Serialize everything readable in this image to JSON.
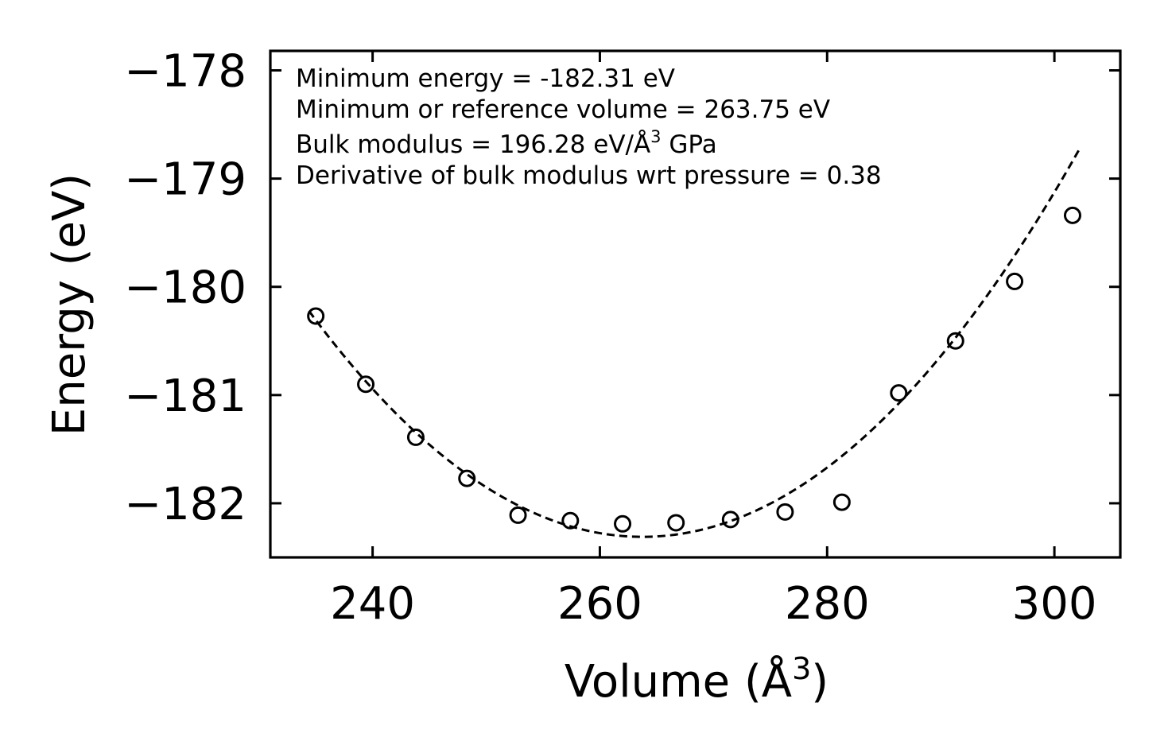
{
  "chart_data": {
    "type": "scatter",
    "title": "",
    "xlabel": "Volume (Å",
    "xlabel_sup": "3",
    "xlabel_end": ")",
    "ylabel": "Energy (eV)",
    "xlim": [
      231,
      305.8
    ],
    "ylim": [
      -182.5,
      -177.82
    ],
    "x_ticks": [
      240,
      260,
      280,
      300
    ],
    "x_tick_labels": [
      "240",
      "260",
      "280",
      "300"
    ],
    "y_ticks": [
      -182,
      -181,
      -180,
      -179,
      -178
    ],
    "y_tick_labels": [
      "−182",
      "−181",
      "−180",
      "−179",
      "−178"
    ],
    "series": [
      {
        "name": "data",
        "style": "open-circle",
        "x": [
          235.0,
          239.4,
          243.8,
          248.3,
          252.8,
          257.4,
          262.0,
          266.7,
          271.5,
          276.3,
          281.3,
          286.3,
          291.3,
          296.5,
          301.6
        ],
        "y": [
          -180.27,
          -180.9,
          -181.39,
          -181.77,
          -182.11,
          -182.16,
          -182.19,
          -182.18,
          -182.15,
          -182.08,
          -181.99,
          -180.98,
          -180.5,
          -179.95,
          -179.34
        ]
      },
      {
        "name": "fit",
        "style": "dashed-line",
        "model": "quadratic",
        "x_min": 234.4,
        "x_max": 302.2,
        "vertex_x": 263.75,
        "vertex_y": -182.31,
        "curvature": 0.002423
      }
    ],
    "annotations": [
      {
        "id": "min-energy",
        "text": "Minimum energy = -182.31 eV"
      },
      {
        "id": "min-volume",
        "text": "Minimum or reference volume = 263.75 eV"
      },
      {
        "id": "bulk-modulus",
        "text_before": "Bulk modulus = 196.28 eV/Å",
        "sup": "3",
        "text_after": " GPa"
      },
      {
        "id": "bulk-derivative",
        "text": "Derivative of bulk modulus wrt pressure = 0.38"
      }
    ],
    "colors": {
      "axis": "#000000",
      "marker": "#000000",
      "fit_line": "#000000",
      "background": "#ffffff"
    }
  }
}
